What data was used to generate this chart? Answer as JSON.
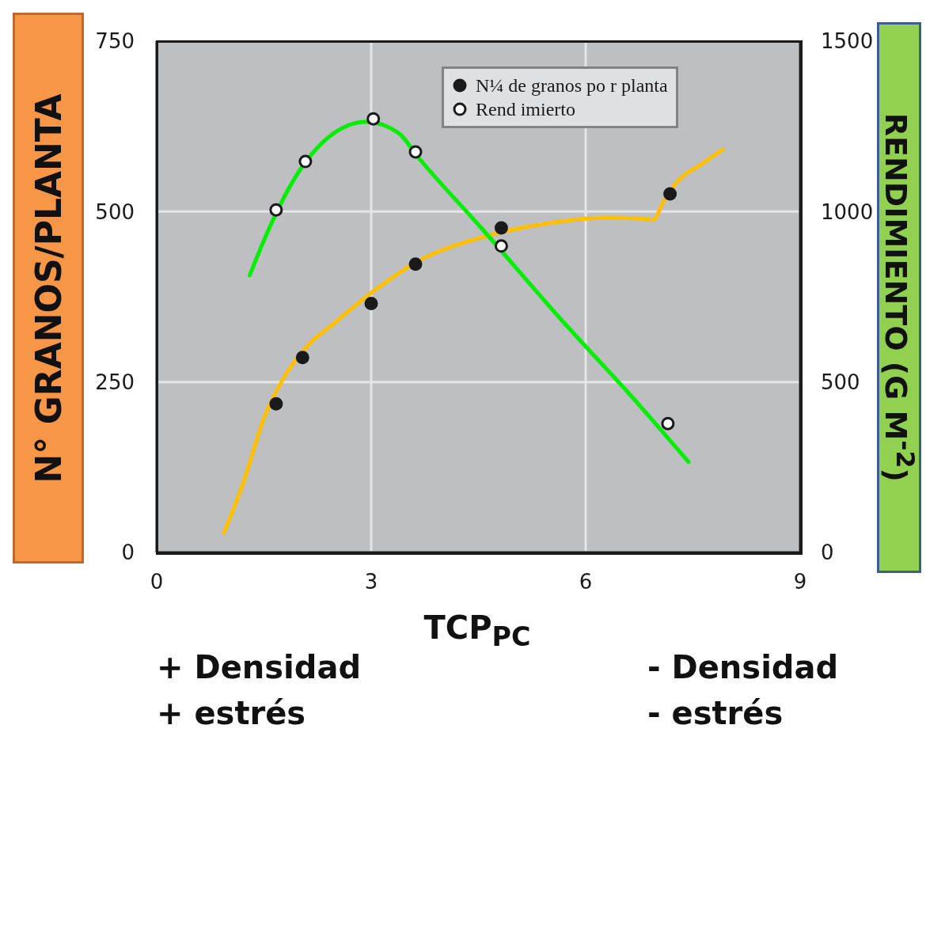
{
  "chart_data": {
    "type": "scatter",
    "xlabel": "TCP$_{PC}$",
    "ylabel": "N° GRANOS/PLANTA",
    "y2label": "RENDIMIENTO (G M$^{-2}$)",
    "xlim": [
      0,
      9
    ],
    "xticks": [
      0,
      3,
      6,
      9
    ],
    "ylim": [
      0,
      750
    ],
    "yticks": [
      0,
      250,
      500,
      750
    ],
    "y2lim": [
      0,
      1500
    ],
    "y2ticks": [
      0,
      500,
      1000,
      1500
    ],
    "grid": true,
    "legend": "top right",
    "series": [
      {
        "type": "line",
        "axis": "y",
        "color": "#ffc000",
        "marker": "none",
        "x": [
          0.94,
          1.22,
          1.5,
          1.77,
          2.1,
          2.49,
          3.03,
          3.65,
          4.54,
          5.43,
          6.31,
          6.76,
          6.95,
          7.07,
          7.25,
          7.64,
          7.92
        ],
        "values": [
          29,
          105,
          197,
          255,
          302,
          337,
          383,
          427,
          462,
          482,
          491,
          490,
          488,
          511,
          540,
          571,
          591
        ]
      },
      {
        "type": "line",
        "axis": "y2",
        "color": "#00ee00",
        "marker": "none",
        "x": [
          1.3,
          1.55,
          1.88,
          2.44,
          2.93,
          3.38,
          3.65,
          4.54,
          5.65,
          6.76,
          7.44
        ],
        "values": [
          813,
          940,
          1080,
          1224,
          1263,
          1231,
          1161,
          952,
          685,
          430,
          265
        ]
      },
      {
        "axis": "y",
        "name": "N¼ de granos po r planta",
        "color": "#1a1a1a",
        "marker": "circle",
        "x": [
          1.67,
          2.04,
          3.0,
          3.62,
          4.82,
          7.18
        ],
        "values": [
          218,
          286,
          365,
          423,
          476,
          526
        ]
      },
      {
        "axis": "y2",
        "name": "Rend imierto",
        "color": "#ffffff",
        "marker": "circle",
        "x": [
          1.67,
          2.08,
          3.03,
          3.62,
          4.82,
          7.15
        ],
        "values": [
          1005,
          1147,
          1272,
          1175,
          899,
          378
        ]
      }
    ],
    "annotations": [
      "+ Densidad",
      "+ estrés",
      "- Densidad",
      "- estrés"
    ]
  }
}
